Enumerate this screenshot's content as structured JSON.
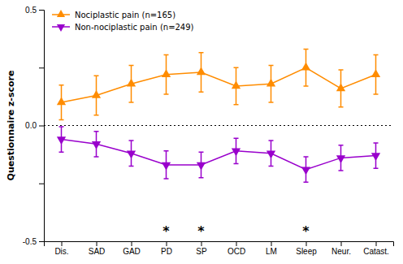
{
  "chart_data": {
    "type": "line",
    "categories": [
      "Dis.",
      "SAD",
      "GAD",
      "PD",
      "SP",
      "OCD",
      "LM",
      "Sleep",
      "Neur.",
      "Catast."
    ],
    "series": [
      {
        "name": "Nociplastic pain (n=165)",
        "color": "#FF8C00",
        "marker": "triangle-up",
        "values": [
          0.1,
          0.13,
          0.18,
          0.22,
          0.23,
          0.17,
          0.18,
          0.25,
          0.16,
          0.22
        ],
        "errors": [
          0.075,
          0.085,
          0.08,
          0.085,
          0.085,
          0.08,
          0.08,
          0.08,
          0.08,
          0.085
        ]
      },
      {
        "name": "Non-nociplastic pain (n=249)",
        "color": "#9900CC",
        "marker": "triangle-down",
        "values": [
          -0.06,
          -0.08,
          -0.12,
          -0.17,
          -0.17,
          -0.11,
          -0.12,
          -0.19,
          -0.14,
          -0.13
        ],
        "errors": [
          0.055,
          0.055,
          0.055,
          0.06,
          0.055,
          0.055,
          0.055,
          0.055,
          0.055,
          0.055
        ]
      }
    ],
    "y_label": "Questionnaire z-score",
    "ylim": [
      -0.5,
      0.5
    ],
    "yticks": [
      -0.5,
      {
        "value": -0.25,
        "label": ""
      },
      {
        "value": 0.0,
        "label": "0.0"
      },
      {
        "value": 0.25,
        "label": ""
      },
      0.5
    ],
    "annotations": [
      {
        "text": "*",
        "x": "PD",
        "y": -0.455
      },
      {
        "text": "*",
        "x": "SP",
        "y": -0.455
      },
      {
        "text": "*",
        "x": "Sleep",
        "y": -0.455
      }
    ],
    "lines": [
      {
        "y": 0.0,
        "line_style": "dotted"
      }
    ],
    "legend": "upper left",
    "grid": false
  }
}
